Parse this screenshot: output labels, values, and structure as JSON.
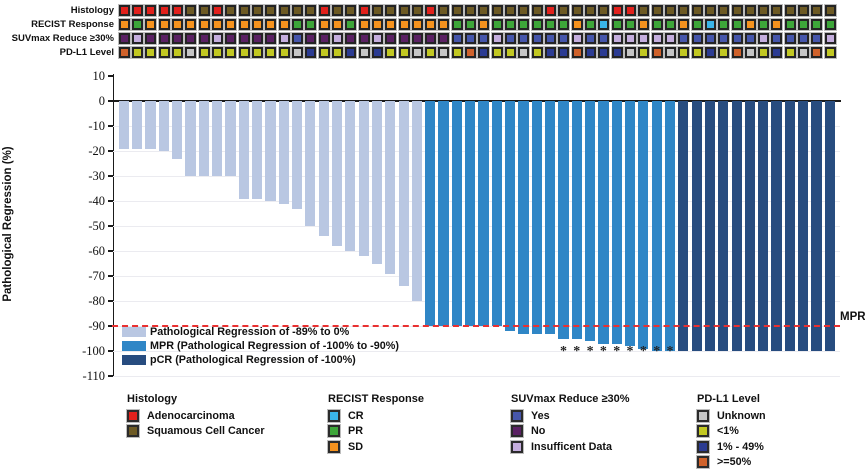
{
  "tracks": {
    "labels": [
      "Histology",
      "RECIST Response",
      "SUVmax Reduce ≥30%",
      "PD-L1 Level"
    ]
  },
  "colors": {
    "bars": {
      "reg": "#b9c7e2",
      "mpr": "#2f86c6",
      "pcr": "#274c7f"
    },
    "histology": {
      "A": "#e2211c",
      "S": "#6d5a24"
    },
    "recist": {
      "CR": "#3ab5e9",
      "PR": "#3da639",
      "SD": "#f5921e"
    },
    "suvmax": {
      "Y": "#4656ab",
      "N": "#5b2164",
      "I": "#c5aede"
    },
    "pdl1": {
      "U": "#c6c6c6",
      "L": "#c2c822",
      "M": "#2b3b92",
      "H": "#d0622b"
    },
    "reference_line": "#e93030"
  },
  "chart_data": {
    "type": "bar",
    "subtype": "waterfall",
    "ylabel": "Pathological Regression (%)",
    "ylim": [
      10,
      -110
    ],
    "yticks": [
      10,
      0,
      -10,
      -20,
      -30,
      -40,
      -50,
      -60,
      -70,
      -80,
      -90,
      -100,
      -110
    ],
    "grid": "horizontal-light",
    "reference_line": {
      "value": -90,
      "label": "MPR",
      "style": "dashed-red"
    },
    "groups_meaning": {
      "reg": "Pathological Regression of -89% to 0%",
      "mpr": "MPR (Pathological Regression of -100% to -90%)",
      "pcr": "pCR (Pathological Regression of -100%)"
    },
    "patients": [
      {
        "v": -19,
        "g": "reg",
        "h": "A",
        "re": "SD",
        "s": "N",
        "p": "H",
        "a": false
      },
      {
        "v": -19,
        "g": "reg",
        "h": "A",
        "re": "PR",
        "s": "I",
        "p": "L",
        "a": false
      },
      {
        "v": -19,
        "g": "reg",
        "h": "A",
        "re": "SD",
        "s": "N",
        "p": "L",
        "a": false
      },
      {
        "v": -20,
        "g": "reg",
        "h": "A",
        "re": "SD",
        "s": "N",
        "p": "L",
        "a": false
      },
      {
        "v": -23,
        "g": "reg",
        "h": "A",
        "re": "SD",
        "s": "N",
        "p": "L",
        "a": false
      },
      {
        "v": -30,
        "g": "reg",
        "h": "S",
        "re": "SD",
        "s": "N",
        "p": "U",
        "a": false
      },
      {
        "v": -30,
        "g": "reg",
        "h": "S",
        "re": "SD",
        "s": "N",
        "p": "L",
        "a": false
      },
      {
        "v": -30,
        "g": "reg",
        "h": "A",
        "re": "SD",
        "s": "I",
        "p": "L",
        "a": false
      },
      {
        "v": -30,
        "g": "reg",
        "h": "S",
        "re": "SD",
        "s": "N",
        "p": "L",
        "a": false
      },
      {
        "v": -39,
        "g": "reg",
        "h": "S",
        "re": "SD",
        "s": "N",
        "p": "L",
        "a": false
      },
      {
        "v": -39,
        "g": "reg",
        "h": "S",
        "re": "SD",
        "s": "N",
        "p": "L",
        "a": false
      },
      {
        "v": -40,
        "g": "reg",
        "h": "S",
        "re": "SD",
        "s": "N",
        "p": "L",
        "a": false
      },
      {
        "v": -41,
        "g": "reg",
        "h": "S",
        "re": "SD",
        "s": "I",
        "p": "L",
        "a": false
      },
      {
        "v": -43,
        "g": "reg",
        "h": "S",
        "re": "PR",
        "s": "Y",
        "p": "U",
        "a": false
      },
      {
        "v": -50,
        "g": "reg",
        "h": "S",
        "re": "PR",
        "s": "N",
        "p": "M",
        "a": false
      },
      {
        "v": -54,
        "g": "reg",
        "h": "A",
        "re": "SD",
        "s": "N",
        "p": "L",
        "a": false
      },
      {
        "v": -58,
        "g": "reg",
        "h": "S",
        "re": "SD",
        "s": "I",
        "p": "L",
        "a": false
      },
      {
        "v": -60,
        "g": "reg",
        "h": "S",
        "re": "PR",
        "s": "N",
        "p": "M",
        "a": false
      },
      {
        "v": -62,
        "g": "reg",
        "h": "A",
        "re": "SD",
        "s": "N",
        "p": "U",
        "a": false
      },
      {
        "v": -65,
        "g": "reg",
        "h": "S",
        "re": "SD",
        "s": "I",
        "p": "M",
        "a": false
      },
      {
        "v": -69,
        "g": "reg",
        "h": "S",
        "re": "SD",
        "s": "N",
        "p": "L",
        "a": false
      },
      {
        "v": -74,
        "g": "reg",
        "h": "S",
        "re": "SD",
        "s": "N",
        "p": "L",
        "a": false
      },
      {
        "v": -80,
        "g": "reg",
        "h": "S",
        "re": "SD",
        "s": "N",
        "p": "U",
        "a": false
      },
      {
        "v": -90,
        "g": "mpr",
        "h": "A",
        "re": "SD",
        "s": "N",
        "p": "L",
        "a": false
      },
      {
        "v": -90,
        "g": "mpr",
        "h": "S",
        "re": "SD",
        "s": "N",
        "p": "U",
        "a": false
      },
      {
        "v": -90,
        "g": "mpr",
        "h": "S",
        "re": "PR",
        "s": "Y",
        "p": "L",
        "a": false
      },
      {
        "v": -90,
        "g": "mpr",
        "h": "S",
        "re": "PR",
        "s": "Y",
        "p": "H",
        "a": false
      },
      {
        "v": -90,
        "g": "mpr",
        "h": "S",
        "re": "SD",
        "s": "Y",
        "p": "M",
        "a": false
      },
      {
        "v": -90,
        "g": "mpr",
        "h": "S",
        "re": "PR",
        "s": "I",
        "p": "L",
        "a": false
      },
      {
        "v": -92,
        "g": "mpr",
        "h": "S",
        "re": "PR",
        "s": "Y",
        "p": "L",
        "a": false
      },
      {
        "v": -93,
        "g": "mpr",
        "h": "S",
        "re": "PR",
        "s": "Y",
        "p": "U",
        "a": false
      },
      {
        "v": -93,
        "g": "mpr",
        "h": "S",
        "re": "PR",
        "s": "Y",
        "p": "L",
        "a": false
      },
      {
        "v": -93,
        "g": "mpr",
        "h": "A",
        "re": "PR",
        "s": "Y",
        "p": "M",
        "a": false
      },
      {
        "v": -95,
        "g": "mpr",
        "h": "S",
        "re": "PR",
        "s": "Y",
        "p": "M",
        "a": true
      },
      {
        "v": -95,
        "g": "mpr",
        "h": "S",
        "re": "SD",
        "s": "I",
        "p": "H",
        "a": true
      },
      {
        "v": -96,
        "g": "mpr",
        "h": "S",
        "re": "PR",
        "s": "Y",
        "p": "M",
        "a": true
      },
      {
        "v": -97,
        "g": "mpr",
        "h": "S",
        "re": "CR",
        "s": "Y",
        "p": "M",
        "a": true
      },
      {
        "v": -97,
        "g": "mpr",
        "h": "A",
        "re": "PR",
        "s": "I",
        "p": "M",
        "a": true
      },
      {
        "v": -98,
        "g": "mpr",
        "h": "A",
        "re": "PR",
        "s": "I",
        "p": "U",
        "a": true
      },
      {
        "v": -99,
        "g": "mpr",
        "h": "S",
        "re": "SD",
        "s": "I",
        "p": "L",
        "a": true
      },
      {
        "v": -100,
        "g": "mpr",
        "h": "S",
        "re": "PR",
        "s": "I",
        "p": "H",
        "a": true
      },
      {
        "v": -100,
        "g": "mpr",
        "h": "S",
        "re": "PR",
        "s": "I",
        "p": "U",
        "a": true
      },
      {
        "v": -100,
        "g": "pcr",
        "h": "S",
        "re": "SD",
        "s": "Y",
        "p": "L",
        "a": false
      },
      {
        "v": -100,
        "g": "pcr",
        "h": "S",
        "re": "PR",
        "s": "Y",
        "p": "L",
        "a": false
      },
      {
        "v": -100,
        "g": "pcr",
        "h": "S",
        "re": "CR",
        "s": "Y",
        "p": "M",
        "a": false
      },
      {
        "v": -100,
        "g": "pcr",
        "h": "S",
        "re": "PR",
        "s": "Y",
        "p": "L",
        "a": false
      },
      {
        "v": -100,
        "g": "pcr",
        "h": "S",
        "re": "PR",
        "s": "Y",
        "p": "H",
        "a": false
      },
      {
        "v": -100,
        "g": "pcr",
        "h": "S",
        "re": "SD",
        "s": "Y",
        "p": "U",
        "a": false
      },
      {
        "v": -100,
        "g": "pcr",
        "h": "S",
        "re": "PR",
        "s": "I",
        "p": "L",
        "a": false
      },
      {
        "v": -100,
        "g": "pcr",
        "h": "S",
        "re": "SD",
        "s": "Y",
        "p": "M",
        "a": false
      },
      {
        "v": -100,
        "g": "pcr",
        "h": "S",
        "re": "PR",
        "s": "Y",
        "p": "L",
        "a": false
      },
      {
        "v": -100,
        "g": "pcr",
        "h": "S",
        "re": "PR",
        "s": "Y",
        "p": "U",
        "a": false
      },
      {
        "v": -100,
        "g": "pcr",
        "h": "S",
        "re": "PR",
        "s": "Y",
        "p": "H",
        "a": false
      },
      {
        "v": -100,
        "g": "pcr",
        "h": "S",
        "re": "PR",
        "s": "I",
        "p": "L",
        "a": false
      }
    ]
  },
  "bar_legend": [
    {
      "label": "Pathological Regression of -89% to 0%",
      "color_key": "bars.reg"
    },
    {
      "label": "MPR (Pathological Regression of -100% to -90%)",
      "color_key": "bars.mpr"
    },
    {
      "label": "pCR (Pathological Regression of -100%)",
      "color_key": "bars.pcr"
    }
  ],
  "legend_groups": [
    {
      "title": "Histology",
      "items": [
        {
          "label": "Adenocarcinoma",
          "color_key": "histology.A"
        },
        {
          "label": "Squamous Cell Cancer",
          "color_key": "histology.S"
        }
      ]
    },
    {
      "title": "RECIST Response",
      "items": [
        {
          "label": "CR",
          "color_key": "recist.CR"
        },
        {
          "label": "PR",
          "color_key": "recist.PR"
        },
        {
          "label": "SD",
          "color_key": "recist.SD"
        }
      ]
    },
    {
      "title": "SUVmax Reduce ≥30%",
      "items": [
        {
          "label": "Yes",
          "color_key": "suvmax.Y"
        },
        {
          "label": "No",
          "color_key": "suvmax.N"
        },
        {
          "label": "Insufficent Data",
          "color_key": "suvmax.I"
        }
      ]
    },
    {
      "title": "PD-L1 Level",
      "items": [
        {
          "label": "Unknown",
          "color_key": "pdl1.U"
        },
        {
          "label": "<1%",
          "color_key": "pdl1.L"
        },
        {
          "label": "1% - 49%",
          "color_key": "pdl1.M"
        },
        {
          "label": ">=50%",
          "color_key": "pdl1.H"
        }
      ]
    }
  ]
}
